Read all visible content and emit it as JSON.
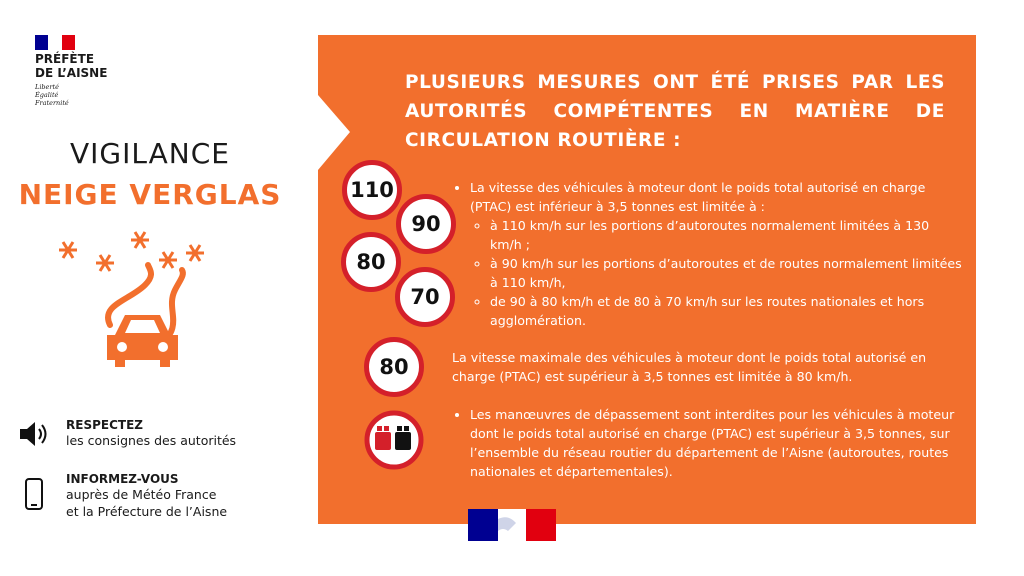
{
  "header": {
    "logo_lines": [
      "PRÉFÈTE",
      "DE L’AISNE"
    ],
    "motto": [
      "Liberté",
      "Égalité",
      "Fraternité"
    ]
  },
  "alert": {
    "title": "VIGILANCE",
    "subtitle": "NEIGE VERGLAS"
  },
  "advice": [
    {
      "title": "RESPECTEZ",
      "lines": [
        "les consignes des autorités"
      ]
    },
    {
      "title": "INFORMEZ-VOUS",
      "lines": [
        "auprès de Météo France",
        "et la Préfecture de l’Aisne"
      ]
    }
  ],
  "panel": {
    "heading": "PLUSIEURS MESURES ONT ÉTÉ PRISES PAR LES AUTORITÉS COMPÉTENTES EN MATIÈRE DE CIRCULATION ROUTIÈRE :",
    "signs": [
      "110",
      "90",
      "80",
      "70",
      "80"
    ],
    "measures": [
      {
        "text": "La vitesse des véhicules à moteur dont le poids total autorisé en charge (PTAC) est inférieur à 3,5 tonnes est limitée à :",
        "subitems": [
          "à 110 km/h sur les portions d’autoroutes normalement limitées à 130 km/h ;",
          "à 90 km/h sur les portions d’autoroutes et de routes normalement limitées à 110 km/h,",
          "de 90 à 80 km/h et de 80 à 70 km/h sur les routes nationales et hors agglomération."
        ]
      },
      {
        "text": "La vitesse maximale des véhicules à moteur dont le poids total autorisé en charge (PTAC) est supérieur à 3,5 tonnes est limitée à 80 km/h."
      },
      {
        "text": "Les manœuvres de dépassement sont interdites pour les véhicules à moteur dont le poids total autorisé en charge (PTAC) est supérieur à 3,5 tonnes, sur l’ensemble du réseau routier du département de l’Aisne (autoroutes, routes nationales et départementales)."
      }
    ]
  }
}
